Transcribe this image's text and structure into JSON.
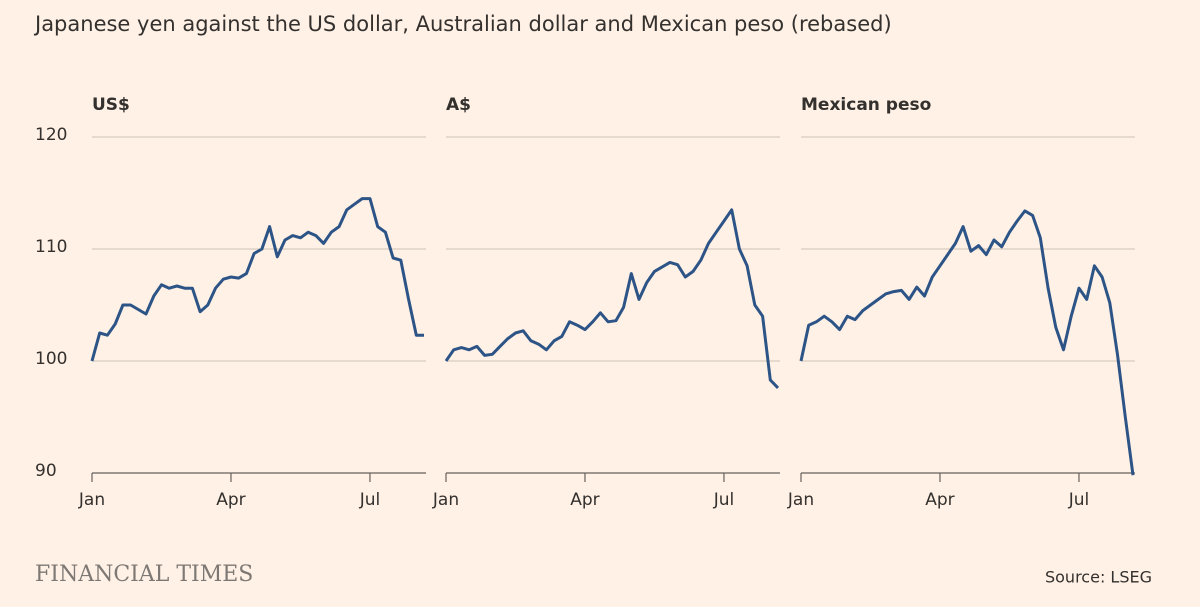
{
  "title": "Japanese yen against the US dollar, Australian dollar and Mexican peso (rebased)",
  "brand": "FINANCIAL TIMES",
  "source": "Source: LSEG",
  "chart_data": [
    {
      "type": "line",
      "title": "US$",
      "color": "#2d5487",
      "categories": [
        "Jan",
        null,
        null,
        null,
        null,
        null,
        null,
        null,
        null,
        null,
        null,
        null,
        null,
        null,
        null,
        null,
        null,
        null,
        "Apr",
        null,
        null,
        null,
        null,
        null,
        null,
        null,
        null,
        null,
        null,
        null,
        null,
        null,
        null,
        null,
        null,
        null,
        "Jul",
        null,
        null,
        null,
        null,
        null,
        null,
        null
      ],
      "values": [
        100,
        102.5,
        102.3,
        103.3,
        105,
        105,
        104.6,
        104.2,
        105.8,
        106.8,
        106.5,
        106.7,
        106.5,
        106.5,
        104.4,
        105,
        106.5,
        107.3,
        107.5,
        107.4,
        107.8,
        109.6,
        110,
        112,
        109.3,
        110.8,
        111.2,
        111,
        111.5,
        111.2,
        110.5,
        111.5,
        112,
        113.5,
        114,
        114.5,
        114.5,
        112,
        111.5,
        109.2,
        109,
        105.5,
        102.3,
        102.3
      ],
      "ylim": [
        90,
        120
      ],
      "yticks": [
        90,
        100,
        110,
        120
      ],
      "grid": true
    },
    {
      "type": "line",
      "title": "A$",
      "color": "#2d5487",
      "categories": [
        "Jan",
        null,
        null,
        null,
        null,
        null,
        null,
        null,
        null,
        null,
        null,
        null,
        null,
        null,
        null,
        null,
        null,
        null,
        "Apr",
        null,
        null,
        null,
        null,
        null,
        null,
        null,
        null,
        null,
        null,
        null,
        null,
        null,
        null,
        null,
        null,
        null,
        "Jul",
        null,
        null,
        null,
        null,
        null,
        null,
        null
      ],
      "values": [
        100,
        101,
        101.2,
        101,
        101.3,
        100.5,
        100.6,
        101.3,
        102,
        102.5,
        102.7,
        101.8,
        101.5,
        101,
        101.8,
        102.2,
        103.5,
        103.2,
        102.8,
        103.5,
        104.3,
        103.5,
        103.6,
        104.8,
        107.8,
        105.5,
        107,
        108,
        108.4,
        108.8,
        108.6,
        107.5,
        108,
        109,
        110.5,
        111.5,
        112.5,
        113.5,
        110,
        108.5,
        105,
        104,
        98.3,
        97.6
      ]
    },
    {
      "type": "line",
      "title": "Mexican peso",
      "color": "#2d5487",
      "categories": [
        "Jan",
        null,
        null,
        null,
        null,
        null,
        null,
        null,
        null,
        null,
        null,
        null,
        null,
        null,
        null,
        null,
        null,
        null,
        "Apr",
        null,
        null,
        null,
        null,
        null,
        null,
        null,
        null,
        null,
        null,
        null,
        null,
        null,
        null,
        null,
        null,
        null,
        "Jul",
        null,
        null,
        null,
        null,
        null,
        null,
        null
      ],
      "values": [
        100,
        103.2,
        103.5,
        104,
        103.5,
        102.8,
        104,
        103.7,
        104.5,
        105,
        105.5,
        106,
        106.2,
        106.3,
        105.5,
        106.6,
        105.8,
        107.5,
        108.5,
        109.5,
        110.5,
        112,
        109.8,
        110.3,
        109.5,
        110.8,
        110.2,
        111.5,
        112.5,
        113.4,
        113,
        111,
        106.5,
        103,
        101,
        104,
        106.5,
        105.5,
        108.5,
        107.5,
        105.2,
        100.5,
        95,
        89.8
      ]
    }
  ]
}
